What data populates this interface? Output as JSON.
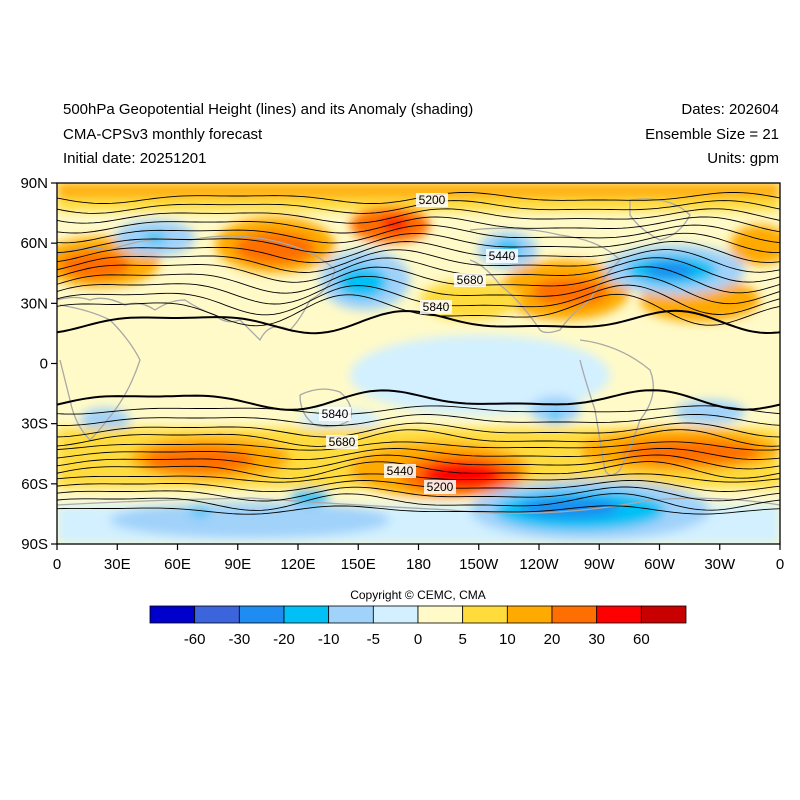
{
  "header": {
    "title_left": "500hPa Geopotential Height (lines) and its Anomaly (shading)",
    "model": "CMA-CPSv3 monthly forecast",
    "initial_date": "Initial date: 20251201",
    "dates": "Dates: 202604",
    "ensemble": "Ensemble Size = 21",
    "units": "Units: gpm"
  },
  "axes": {
    "lat_ticks": [
      "90N",
      "60N",
      "30N",
      "0",
      "30S",
      "60S",
      "90S"
    ],
    "lon_ticks": [
      "0",
      "30E",
      "60E",
      "90E",
      "120E",
      "150E",
      "180",
      "150W",
      "120W",
      "90W",
      "60W",
      "30W",
      "0"
    ]
  },
  "contour_labels": [
    "5200",
    "5440",
    "5680",
    "5840",
    "5840",
    "5680",
    "5440",
    "5200"
  ],
  "colorbar": {
    "colors": [
      "#0000cd",
      "#3c64dc",
      "#1e8cf0",
      "#00c0f5",
      "#a0d2fa",
      "#d2f0ff",
      "#fffac8",
      "#ffdc3c",
      "#ffaa00",
      "#ff6e00",
      "#ff0000",
      "#c80000"
    ],
    "labels": [
      "-60",
      "-30",
      "-20",
      "-10",
      "-5",
      "0",
      "5",
      "10",
      "20",
      "30",
      "60"
    ]
  },
  "copyright": "Copyright © CEMC, CMA"
}
